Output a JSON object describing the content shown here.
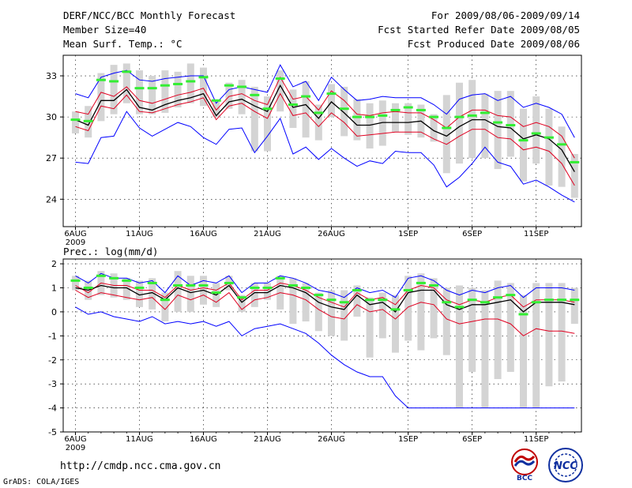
{
  "header": {
    "title": "DERF/NCC/BCC Monthly Forecast",
    "member_size": "Member Size=40",
    "variable": "Mean Surf. Temp.: °C",
    "period": "For 2009/08/06-2009/09/14",
    "fcst_started": "Fcst Started Refer Date 2009/08/05",
    "fcst_produced": "Fcst Produced Date 2009/08/06"
  },
  "footer": {
    "url": "http://cmdp.ncc.cma.gov.cn",
    "grads": "GrADS: COLA/IGES",
    "logo_bcc": "BCC",
    "logo_ncc": "NCC"
  },
  "colors": {
    "envelope": "#0000ff",
    "spread": "#e00020",
    "mean": "#000000",
    "marker": "#33ee33",
    "bar": "#d4d4d4",
    "grid": "#000000"
  },
  "chart_data": [
    {
      "type": "line",
      "title": "Mean Surf. Temp.: °C",
      "x": [
        "Aug 6",
        "Aug 7",
        "Aug 8",
        "Aug 9",
        "Aug 10",
        "Aug 11",
        "Aug 12",
        "Aug 13",
        "Aug 14",
        "Aug 15",
        "Aug 16",
        "Aug 17",
        "Aug 18",
        "Aug 19",
        "Aug 20",
        "Aug 21",
        "Aug 22",
        "Aug 23",
        "Aug 24",
        "Aug 25",
        "Aug 26",
        "Aug 27",
        "Aug 28",
        "Aug 29",
        "Aug 30",
        "Aug 31",
        "Sep 1",
        "Sep 2",
        "Sep 3",
        "Sep 4",
        "Sep 5",
        "Sep 6",
        "Sep 7",
        "Sep 8",
        "Sep 9",
        "Sep 10",
        "Sep 11",
        "Sep 12",
        "Sep 13",
        "Sep 14"
      ],
      "xtick_labels": [
        "6AUG",
        "11AUG",
        "16AUG",
        "21AUG",
        "26AUG",
        "1SEP",
        "6SEP",
        "11SEP"
      ],
      "xtick_sub": "2009",
      "ylim": [
        22,
        34.5
      ],
      "yticks": [
        24,
        27,
        30,
        33
      ],
      "series": [
        {
          "name": "ensemble max",
          "color": "#0000ff",
          "values": [
            31.7,
            31.4,
            32.9,
            33.2,
            33.4,
            32.7,
            32.6,
            32.8,
            32.9,
            33.0,
            33.0,
            31.0,
            32.0,
            32.2,
            32.0,
            31.8,
            33.8,
            32.2,
            32.6,
            31.2,
            32.9,
            32.0,
            31.2,
            31.3,
            31.5,
            31.4,
            31.4,
            31.4,
            30.9,
            30.2,
            31.3,
            31.6,
            31.7,
            31.2,
            31.5,
            30.7,
            31.0,
            30.7,
            30.2,
            28.5
          ]
        },
        {
          "name": "upper spread",
          "color": "#e00020",
          "values": [
            30.4,
            30.2,
            31.8,
            31.5,
            32.2,
            31.2,
            31.0,
            31.3,
            31.6,
            31.8,
            32.1,
            30.5,
            31.5,
            31.7,
            31.2,
            30.9,
            32.9,
            31.3,
            31.5,
            30.5,
            31.9,
            31.2,
            30.2,
            30.1,
            30.3,
            30.4,
            30.3,
            30.3,
            29.8,
            29.2,
            30.0,
            30.5,
            30.5,
            30.1,
            30.0,
            29.3,
            29.6,
            29.3,
            28.6,
            27.0
          ]
        },
        {
          "name": "ensemble mean",
          "color": "#000000",
          "values": [
            29.8,
            29.4,
            31.2,
            31.2,
            32.0,
            30.7,
            30.5,
            30.9,
            31.2,
            31.4,
            31.7,
            30.1,
            31.1,
            31.3,
            30.8,
            30.4,
            32.3,
            30.7,
            30.9,
            29.9,
            31.1,
            30.3,
            29.4,
            29.4,
            29.6,
            29.6,
            29.6,
            29.7,
            29.0,
            28.6,
            29.3,
            29.8,
            29.8,
            29.3,
            29.2,
            28.4,
            28.7,
            28.4,
            27.6,
            26.0
          ]
        },
        {
          "name": "lower spread",
          "color": "#e00020",
          "values": [
            29.3,
            29.0,
            30.8,
            30.6,
            31.6,
            30.4,
            30.3,
            30.6,
            30.9,
            31.1,
            31.4,
            29.8,
            30.8,
            31.0,
            30.4,
            29.9,
            31.7,
            30.1,
            30.3,
            29.3,
            30.3,
            29.6,
            28.6,
            28.7,
            28.8,
            28.9,
            28.9,
            28.9,
            28.4,
            28.0,
            28.6,
            29.1,
            29.1,
            28.5,
            28.4,
            27.6,
            27.8,
            27.5,
            26.6,
            25.0
          ]
        },
        {
          "name": "ensemble min",
          "color": "#0000ff",
          "values": [
            26.7,
            26.6,
            28.5,
            28.6,
            30.4,
            29.2,
            28.6,
            29.1,
            29.6,
            29.3,
            28.5,
            28.0,
            29.1,
            29.2,
            27.4,
            28.6,
            29.9,
            27.3,
            27.8,
            26.9,
            27.7,
            27.0,
            26.4,
            26.8,
            26.6,
            27.5,
            27.4,
            27.4,
            26.5,
            24.9,
            25.6,
            26.6,
            27.8,
            26.7,
            26.4,
            25.1,
            25.4,
            24.9,
            24.3,
            23.8
          ]
        }
      ],
      "bars": {
        "name": "member range",
        "color": "#d4d4d4",
        "lows": [
          28.8,
          28.5,
          29.7,
          30.2,
          31.0,
          30.2,
          30.2,
          30.3,
          30.7,
          31.0,
          30.8,
          30.0,
          30.6,
          30.2,
          27.5,
          27.5,
          30.4,
          29.2,
          28.5,
          28.3,
          30.0,
          28.6,
          28.3,
          27.7,
          27.9,
          28.9,
          28.7,
          28.5,
          28.2,
          25.9,
          26.6,
          27.0,
          27.0,
          26.2,
          27.1,
          25.3,
          26.6,
          25.0,
          24.9,
          24.1
        ],
        "highs": [
          30.4,
          30.8,
          33.2,
          33.8,
          33.9,
          33.4,
          33.0,
          33.4,
          33.3,
          33.9,
          33.6,
          31.1,
          32.5,
          32.7,
          32.2,
          31.5,
          33.4,
          32.0,
          32.6,
          30.9,
          32.4,
          32.2,
          31.3,
          31.0,
          31.2,
          31.0,
          31.0,
          30.9,
          30.2,
          31.6,
          32.5,
          32.7,
          31.7,
          31.9,
          31.9,
          30.6,
          31.5,
          30.6,
          29.3,
          27.3
        ]
      },
      "markers": {
        "name": "median",
        "color": "#33ee33",
        "values": [
          29.8,
          29.7,
          32.7,
          32.6,
          33.3,
          32.1,
          32.1,
          32.3,
          32.4,
          32.6,
          32.9,
          31.2,
          32.3,
          32.2,
          31.6,
          30.6,
          32.8,
          30.9,
          31.5,
          30.3,
          31.7,
          30.6,
          30.0,
          30.0,
          30.1,
          30.5,
          30.7,
          30.5,
          30.0,
          29.2,
          30.0,
          30.1,
          30.3,
          29.6,
          29.4,
          28.3,
          28.8,
          28.5,
          28.0,
          26.7
        ]
      }
    },
    {
      "type": "line",
      "title": "Prec.: log(mm/d)",
      "x": [
        "Aug 6",
        "Aug 7",
        "Aug 8",
        "Aug 9",
        "Aug 10",
        "Aug 11",
        "Aug 12",
        "Aug 13",
        "Aug 14",
        "Aug 15",
        "Aug 16",
        "Aug 17",
        "Aug 18",
        "Aug 19",
        "Aug 20",
        "Aug 21",
        "Aug 22",
        "Aug 23",
        "Aug 24",
        "Aug 25",
        "Aug 26",
        "Aug 27",
        "Aug 28",
        "Aug 29",
        "Aug 30",
        "Aug 31",
        "Sep 1",
        "Sep 2",
        "Sep 3",
        "Sep 4",
        "Sep 5",
        "Sep 6",
        "Sep 7",
        "Sep 8",
        "Sep 9",
        "Sep 10",
        "Sep 11",
        "Sep 12",
        "Sep 13",
        "Sep 14"
      ],
      "xtick_labels": [
        "6AUG",
        "11AUG",
        "16AUG",
        "21AUG",
        "26AUG",
        "1SEP",
        "6SEP",
        "11SEP"
      ],
      "xtick_sub": "2009",
      "ylim": [
        -5,
        2.2
      ],
      "yticks": [
        -5,
        -4,
        -3,
        -2,
        -1,
        0,
        1,
        2
      ],
      "series": [
        {
          "name": "ensemble max",
          "color": "#0000ff",
          "values": [
            1.5,
            1.2,
            1.6,
            1.4,
            1.4,
            1.2,
            1.3,
            0.8,
            1.5,
            1.1,
            1.3,
            1.2,
            1.5,
            0.8,
            1.2,
            1.2,
            1.5,
            1.4,
            1.2,
            0.9,
            0.8,
            0.6,
            1.0,
            0.8,
            0.9,
            0.6,
            1.4,
            1.5,
            1.3,
            0.9,
            0.7,
            0.9,
            0.8,
            1.0,
            1.1,
            0.6,
            1.0,
            1.0,
            1.0,
            0.9
          ]
        },
        {
          "name": "upper spread",
          "color": "#e00020",
          "values": [
            1.1,
            0.8,
            1.2,
            1.1,
            1.1,
            0.9,
            0.9,
            0.6,
            1.1,
            0.9,
            1.0,
            0.9,
            1.2,
            0.5,
            0.9,
            0.9,
            1.2,
            1.1,
            0.9,
            0.6,
            0.4,
            0.2,
            0.8,
            0.5,
            0.6,
            0.3,
            0.9,
            1.1,
            1.0,
            0.5,
            0.3,
            0.5,
            0.4,
            0.6,
            0.7,
            0.2,
            0.5,
            0.5,
            0.5,
            0.4
          ]
        },
        {
          "name": "ensemble mean",
          "color": "#000000",
          "values": [
            1.0,
            0.9,
            1.1,
            1.0,
            1.0,
            0.7,
            0.8,
            0.5,
            1.0,
            0.8,
            0.9,
            0.7,
            1.1,
            0.4,
            0.8,
            0.8,
            1.1,
            1.0,
            0.8,
            0.4,
            0.2,
            0.1,
            0.7,
            0.3,
            0.4,
            0.0,
            0.8,
            0.9,
            0.9,
            0.3,
            0.1,
            0.3,
            0.3,
            0.4,
            0.5,
            0.0,
            0.4,
            0.4,
            0.4,
            0.3
          ]
        },
        {
          "name": "lower spread",
          "color": "#e00020",
          "values": [
            0.9,
            0.6,
            0.8,
            0.7,
            0.6,
            0.5,
            0.6,
            0.1,
            0.7,
            0.5,
            0.7,
            0.4,
            0.8,
            0.1,
            0.5,
            0.6,
            0.8,
            0.7,
            0.5,
            0.1,
            -0.2,
            -0.3,
            0.3,
            0.0,
            0.1,
            -0.3,
            0.2,
            0.4,
            0.3,
            -0.3,
            -0.5,
            -0.4,
            -0.3,
            -0.3,
            -0.5,
            -1.0,
            -0.7,
            -0.8,
            -0.8,
            -0.9
          ]
        },
        {
          "name": "ensemble min",
          "color": "#0000ff",
          "values": [
            0.2,
            -0.1,
            0.0,
            -0.2,
            -0.3,
            -0.4,
            -0.2,
            -0.5,
            -0.4,
            -0.5,
            -0.4,
            -0.6,
            -0.4,
            -1.0,
            -0.7,
            -0.6,
            -0.5,
            -0.7,
            -0.9,
            -1.3,
            -1.8,
            -2.2,
            -2.5,
            -2.7,
            -2.7,
            -3.5,
            -4.0,
            -4.0,
            -4.0,
            -4.0,
            -4.0,
            -4.0,
            -4.0,
            -4.0,
            -4.0,
            -4.0,
            -4.0,
            -4.0,
            -4.0,
            -4.0
          ]
        }
      ],
      "bars": {
        "name": "member range",
        "color": "#d4d4d4",
        "lows": [
          0.9,
          0.5,
          0.7,
          0.6,
          0.5,
          0.2,
          0.1,
          -0.4,
          0.0,
          0.0,
          0.3,
          0.2,
          0.9,
          0.0,
          0.2,
          0.5,
          0.1,
          -0.5,
          -0.4,
          -0.8,
          -1.0,
          -1.2,
          -0.2,
          -1.9,
          -1.1,
          -1.7,
          -1.2,
          -1.6,
          -1.1,
          -1.8,
          -4.0,
          -2.5,
          -4.0,
          -2.8,
          -2.5,
          -4.0,
          -4.0,
          -3.1,
          -2.9,
          -0.5
        ],
        "highs": [
          1.5,
          1.3,
          1.7,
          1.6,
          1.4,
          1.3,
          1.4,
          0.8,
          1.7,
          1.5,
          1.5,
          1.2,
          1.5,
          0.7,
          1.2,
          1.2,
          1.5,
          1.4,
          1.2,
          0.8,
          0.9,
          0.9,
          1.1,
          0.6,
          0.8,
          0.7,
          1.5,
          1.6,
          1.4,
          1.0,
          1.1,
          1.0,
          0.9,
          1.3,
          1.2,
          0.7,
          1.2,
          1.2,
          1.2,
          1.0
        ]
      },
      "markers": {
        "name": "median",
        "color": "#33ee33",
        "values": [
          1.3,
          1.0,
          1.5,
          1.4,
          1.3,
          1.0,
          1.2,
          0.5,
          1.1,
          1.1,
          1.1,
          0.8,
          1.2,
          0.6,
          1.0,
          1.0,
          1.4,
          1.1,
          1.0,
          0.7,
          0.5,
          0.4,
          0.9,
          0.5,
          0.5,
          0.1,
          0.9,
          1.2,
          1.1,
          0.4,
          0.2,
          0.5,
          0.4,
          0.6,
          0.7,
          -0.1,
          0.4,
          0.5,
          0.5,
          0.5
        ]
      }
    }
  ]
}
